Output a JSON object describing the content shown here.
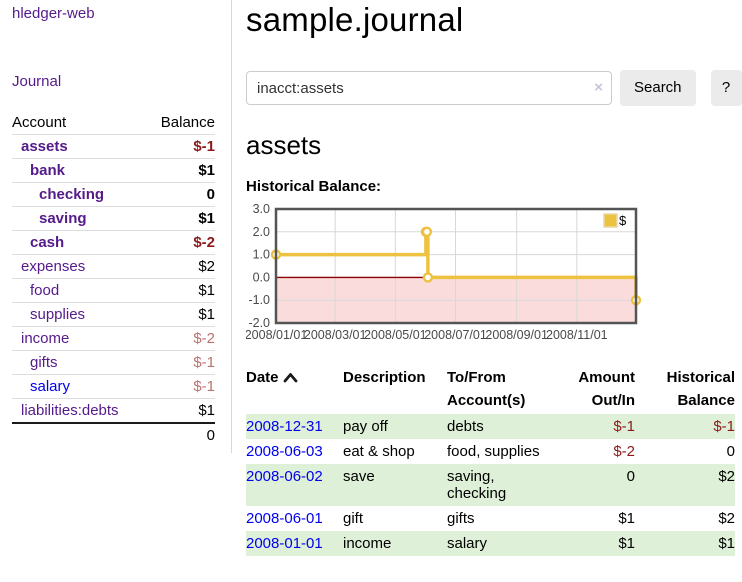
{
  "colors": {
    "link_purple": "#551a8b",
    "link_blue": "#0000ee",
    "negative_strong": "#8b1a1a",
    "negative_weak": "#c0706f",
    "row_green": "#dff0d8",
    "series_gold": "#edc240",
    "negative_region_pink": "#fbdcdc",
    "zero_line_red": "#8b0000",
    "chart_border_gray": "#545454"
  },
  "sidebar": {
    "app_title": "hledger-web",
    "nav_journal": "Journal",
    "accounts_header": {
      "account": "Account",
      "balance": "Balance"
    },
    "accounts": [
      {
        "name": "assets",
        "depth": 1,
        "balance": "$-1",
        "bold": true,
        "balance_class": "neg-strong"
      },
      {
        "name": "bank",
        "depth": 2,
        "balance": "$1",
        "bold": true,
        "balance_class": "pos"
      },
      {
        "name": "checking",
        "depth": 3,
        "balance": "0",
        "bold": true,
        "balance_class": "pos"
      },
      {
        "name": "saving",
        "depth": 3,
        "balance": "$1",
        "bold": true,
        "balance_class": "pos"
      },
      {
        "name": "cash",
        "depth": 2,
        "balance": "$-2",
        "bold": true,
        "balance_class": "neg-strong"
      },
      {
        "name": "expenses",
        "depth": 1,
        "balance": "$2",
        "bold": false,
        "balance_class": "pos"
      },
      {
        "name": "food",
        "depth": 2,
        "balance": "$1",
        "bold": false,
        "balance_class": "pos"
      },
      {
        "name": "supplies",
        "depth": 2,
        "balance": "$1",
        "bold": false,
        "balance_class": "pos"
      },
      {
        "name": "income",
        "depth": 1,
        "balance": "$-2",
        "bold": false,
        "balance_class": "neg-weak"
      },
      {
        "name": "gifts",
        "depth": 2,
        "balance": "$-1",
        "bold": false,
        "balance_class": "neg-weak"
      },
      {
        "name": "salary",
        "depth": 2,
        "balance": "$-1",
        "bold": false,
        "balance_class": "neg-weak",
        "link_color": "blue"
      },
      {
        "name": "liabilities:debts",
        "depth": 1,
        "balance": "$1",
        "bold": false,
        "balance_class": "pos"
      }
    ],
    "total": "0"
  },
  "header": {
    "title": "sample.journal"
  },
  "search": {
    "value": "inacct:assets",
    "clear_icon": "×",
    "button_label": "Search",
    "help_label": "?"
  },
  "account_page": {
    "heading": "assets",
    "chart_label": "Historical Balance:"
  },
  "chart_data": {
    "type": "line",
    "style": "step",
    "title": "Historical Balance",
    "series": [
      {
        "name": "$",
        "color": "#edc240",
        "points": [
          [
            "2008-01-01",
            1
          ],
          [
            "2008-06-01",
            2
          ],
          [
            "2008-06-02",
            2
          ],
          [
            "2008-06-03",
            0
          ],
          [
            "2008-12-31",
            -1
          ]
        ]
      }
    ],
    "xlim": [
      "2008-01-01",
      "2008-12-31"
    ],
    "ylim": [
      -2,
      3
    ],
    "x_ticks": [
      "2008/01/01",
      "2008/03/01",
      "2008/05/01",
      "2008/07/01",
      "2008/09/01",
      "2008/11/01"
    ],
    "y_ticks": [
      "3.0",
      "2.0",
      "1.0",
      "0.0",
      "-1.0",
      "-2.0"
    ],
    "grid": true,
    "legend": {
      "label": "$",
      "position": "top-right"
    },
    "negative_region_color": "#fbdcdc",
    "zero_line_color": "#8b0000"
  },
  "table": {
    "columns": [
      {
        "label": "Date",
        "label2": "",
        "align": "left",
        "sortable": true
      },
      {
        "label": "Description",
        "label2": "",
        "align": "left"
      },
      {
        "label": "To/From",
        "label2": "Account(s)",
        "align": "left"
      },
      {
        "label": "Amount",
        "label2": "Out/In",
        "align": "right"
      },
      {
        "label": "Historical",
        "label2": "Balance",
        "align": "right"
      }
    ],
    "rows": [
      {
        "date": "2008-12-31",
        "description": "pay off",
        "accounts": "debts",
        "amount": "$-1",
        "amount_class": "neg-strong",
        "balance": "$-1",
        "balance_class": "neg-strong"
      },
      {
        "date": "2008-06-03",
        "description": "eat & shop",
        "accounts": "food, supplies",
        "amount": "$-2",
        "amount_class": "neg-strong",
        "balance": "0",
        "balance_class": "pos"
      },
      {
        "date": "2008-06-02",
        "description": "save",
        "accounts": "saving, checking",
        "amount": "0",
        "amount_class": "pos",
        "balance": "$2",
        "balance_class": "pos"
      },
      {
        "date": "2008-06-01",
        "description": "gift",
        "accounts": "gifts",
        "amount": "$1",
        "amount_class": "pos",
        "balance": "$2",
        "balance_class": "pos"
      },
      {
        "date": "2008-01-01",
        "description": "income",
        "accounts": "salary",
        "amount": "$1",
        "amount_class": "pos",
        "balance": "$1",
        "balance_class": "pos"
      }
    ]
  }
}
